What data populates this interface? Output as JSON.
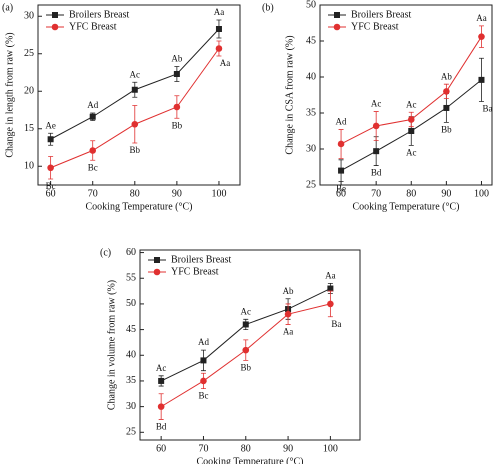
{
  "chart_data": [
    {
      "type": "line",
      "panel_label": "(a)",
      "x_label": "Cooking Temperature (°C)",
      "y_label": "Change in length from raw (%)",
      "x": [
        60,
        70,
        80,
        90,
        100
      ],
      "xlim": [
        57,
        105
      ],
      "xticks": [
        60,
        70,
        80,
        90,
        100
      ],
      "ylim": [
        7.5,
        31.5
      ],
      "yticks": [
        10,
        15,
        20,
        25,
        30
      ],
      "legend": "upper-left",
      "series": [
        {
          "name": "Broilers Breast",
          "color": "#222222",
          "marker": "square",
          "values": [
            13.6,
            16.6,
            20.2,
            22.3,
            28.3
          ],
          "errors": [
            0.8,
            0.5,
            1.0,
            1.0,
            1.2
          ],
          "letters": [
            "Ae",
            "Ad",
            "Ac",
            "Ab",
            "Aa"
          ]
        },
        {
          "name": "YFC Breast",
          "color": "#e03030",
          "marker": "circle",
          "values": [
            9.8,
            12.1,
            15.6,
            17.9,
            25.7
          ],
          "errors": [
            1.5,
            1.3,
            2.5,
            1.5,
            1.0
          ],
          "letters": [
            "Bc",
            "Bc",
            "Bb",
            "Bb",
            "Aa"
          ]
        }
      ]
    },
    {
      "type": "line",
      "panel_label": "(b)",
      "x_label": "Cooking Temperature (°C)",
      "y_label": "Change in CSA from raw (%)",
      "x": [
        60,
        70,
        80,
        90,
        100
      ],
      "xlim": [
        54,
        103
      ],
      "xticks": [
        60,
        70,
        80,
        90,
        100
      ],
      "ylim": [
        25,
        50
      ],
      "yticks": [
        25,
        30,
        35,
        40,
        45,
        50
      ],
      "legend": "upper-left",
      "series": [
        {
          "name": "Broilers Breast",
          "color": "#222222",
          "marker": "square",
          "values": [
            27,
            29.7,
            32.5,
            35.7,
            39.6
          ],
          "errors": [
            1.5,
            2,
            2,
            2,
            3
          ],
          "letters": [
            "Be",
            "Bd",
            "Ac",
            "Bb",
            "Ba"
          ]
        },
        {
          "name": "YFC Breast",
          "color": "#e03030",
          "marker": "circle",
          "values": [
            30.7,
            33.2,
            34.1,
            38,
            45.6
          ],
          "errors": [
            2,
            2,
            1,
            1,
            1.5
          ],
          "letters": [
            "Ad",
            "Ac",
            "Ac",
            "Ab",
            "Aa"
          ]
        }
      ]
    },
    {
      "type": "line",
      "panel_label": "(c)",
      "x_label": "Cooking Temperature (°C)",
      "y_label": "Change in volume from raw (%)",
      "x": [
        60,
        70,
        80,
        90,
        100
      ],
      "xlim": [
        55,
        107
      ],
      "xticks": [
        60,
        70,
        80,
        90,
        100
      ],
      "ylim": [
        23.5,
        60.5
      ],
      "yticks": [
        25,
        30,
        35,
        40,
        45,
        50,
        55,
        60
      ],
      "legend": "upper-left",
      "series": [
        {
          "name": "Broilers Breast",
          "color": "#222222",
          "marker": "square",
          "values": [
            35,
            39,
            46,
            49,
            53
          ],
          "errors": [
            1,
            2,
            1,
            2,
            1
          ],
          "letters": [
            "Ac",
            "Ad",
            "Ac",
            "Ab",
            "Aa"
          ]
        },
        {
          "name": "YFC Breast",
          "color": "#e03030",
          "marker": "circle",
          "values": [
            30,
            35,
            41,
            48,
            50
          ],
          "errors": [
            2.5,
            1.5,
            2,
            2,
            2.5
          ],
          "letters": [
            "Bd",
            "Bc",
            "Bb",
            "Aa",
            "Ba"
          ]
        }
      ]
    }
  ]
}
